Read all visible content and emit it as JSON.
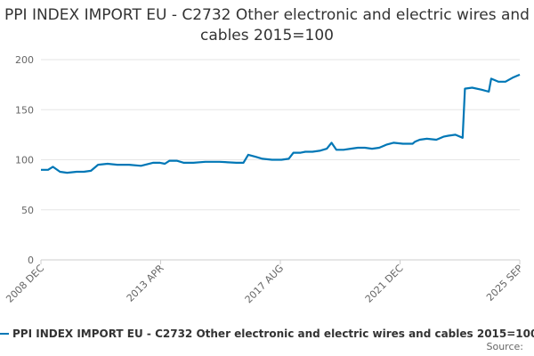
{
  "chart_data": {
    "type": "line",
    "title": "PPI INDEX IMPORT EU - C2732 Other electronic and electric wires and cables 2015=100",
    "xlabel": "",
    "ylabel": "",
    "ylim": [
      0,
      200
    ],
    "yticks": [
      "0",
      "50",
      "100",
      "150",
      "200"
    ],
    "x_tick_labels": [
      "2008 DEC",
      "2013 APR",
      "2017 AUG",
      "2021 DEC",
      "2025 SEP"
    ],
    "grid": true,
    "legend_position": "bottom",
    "color": "#0077b6",
    "series": [
      {
        "name": "PPI INDEX IMPORT EU - C2732 Other electronic and electric wires and cables 2015=100",
        "points": [
          [
            "2008-12",
            90
          ],
          [
            "2009-03",
            90
          ],
          [
            "2009-05",
            93
          ],
          [
            "2009-08",
            88
          ],
          [
            "2009-11",
            87
          ],
          [
            "2010-03",
            88
          ],
          [
            "2010-06",
            88
          ],
          [
            "2010-09",
            89
          ],
          [
            "2010-12",
            95
          ],
          [
            "2011-04",
            96
          ],
          [
            "2011-08",
            95
          ],
          [
            "2012-01",
            95
          ],
          [
            "2012-06",
            94
          ],
          [
            "2012-11",
            97
          ],
          [
            "2013-02",
            97
          ],
          [
            "2013-04",
            96
          ],
          [
            "2013-06",
            99
          ],
          [
            "2013-09",
            99
          ],
          [
            "2013-12",
            97
          ],
          [
            "2014-04",
            97
          ],
          [
            "2014-09",
            98
          ],
          [
            "2015-03",
            98
          ],
          [
            "2015-10",
            97
          ],
          [
            "2016-01",
            97
          ],
          [
            "2016-03",
            105
          ],
          [
            "2016-06",
            103
          ],
          [
            "2016-09",
            101
          ],
          [
            "2017-01",
            100
          ],
          [
            "2017-05",
            100
          ],
          [
            "2017-08",
            101
          ],
          [
            "2017-10",
            107
          ],
          [
            "2018-01",
            107
          ],
          [
            "2018-03",
            108
          ],
          [
            "2018-06",
            108
          ],
          [
            "2018-09",
            109
          ],
          [
            "2018-12",
            111
          ],
          [
            "2019-02",
            117
          ],
          [
            "2019-04",
            110
          ],
          [
            "2019-07",
            110
          ],
          [
            "2019-10",
            111
          ],
          [
            "2020-01",
            112
          ],
          [
            "2020-04",
            112
          ],
          [
            "2020-07",
            111
          ],
          [
            "2020-10",
            112
          ],
          [
            "2021-01",
            115
          ],
          [
            "2021-04",
            117
          ],
          [
            "2021-08",
            116
          ],
          [
            "2021-12",
            116
          ],
          [
            "2022-01",
            118
          ],
          [
            "2022-03",
            120
          ],
          [
            "2022-06",
            121
          ],
          [
            "2022-10",
            120
          ],
          [
            "2023-01",
            123
          ],
          [
            "2023-03",
            124
          ],
          [
            "2023-06",
            125
          ],
          [
            "2023-09",
            122
          ],
          [
            "2023-10",
            171
          ],
          [
            "2024-01",
            172
          ],
          [
            "2024-05",
            170
          ],
          [
            "2024-08",
            168
          ],
          [
            "2024-09",
            181
          ],
          [
            "2024-12",
            178
          ],
          [
            "2025-03",
            178
          ],
          [
            "2025-06",
            182
          ],
          [
            "2025-09",
            185
          ]
        ]
      }
    ]
  },
  "footer": {
    "source_label": "Source:"
  }
}
